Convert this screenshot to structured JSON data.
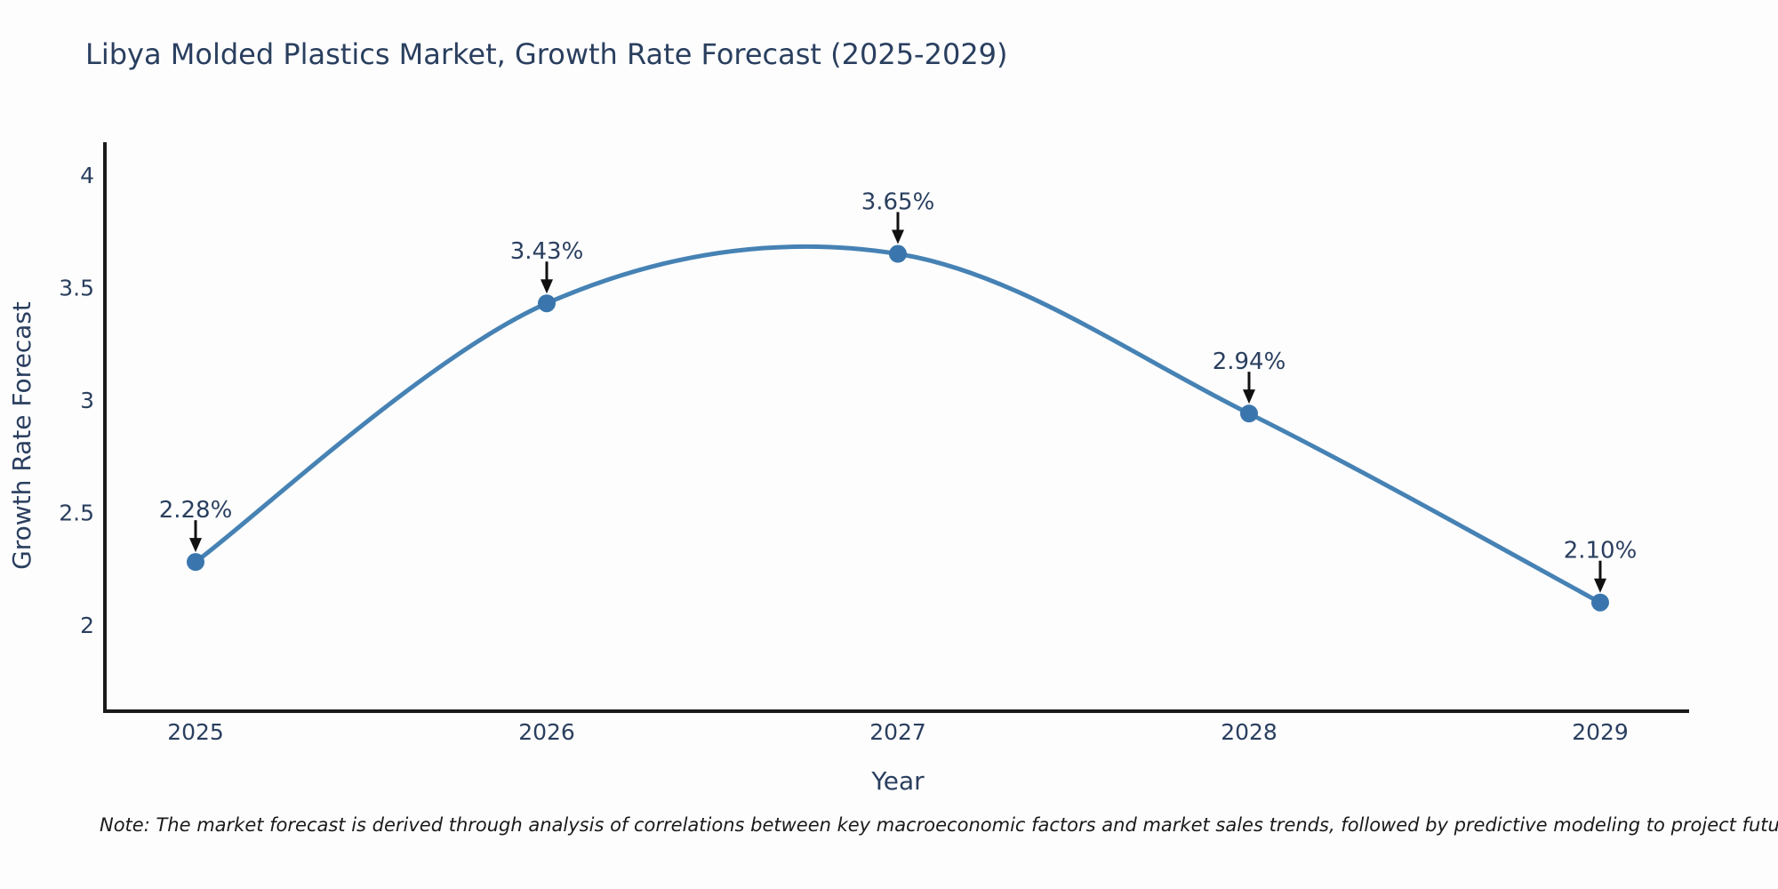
{
  "title": "Libya Molded Plastics Market, Growth Rate Forecast (2025-2029)",
  "note": "Note: The market forecast is derived through analysis of correlations between key macroeconomic factors and market sales trends, followed by predictive modeling to project future sales",
  "chart_data": {
    "type": "line",
    "title": "Libya Molded Plastics Market, Growth Rate Forecast (2025-2029)",
    "x": [
      "2025",
      "2026",
      "2027",
      "2028",
      "2029"
    ],
    "values": [
      2.28,
      3.43,
      3.65,
      2.94,
      2.1
    ],
    "point_labels": [
      "2.28%",
      "3.43%",
      "3.65%",
      "2.94%",
      "2.10%"
    ],
    "xlabel": "Year",
    "ylabel": "Growth Rate Forecast",
    "yticks": [
      4,
      3.5,
      3,
      2.5,
      2
    ],
    "ytick_labels": [
      "4",
      "3.5",
      "3",
      "2.5",
      "2"
    ],
    "ylim": [
      1.62,
      4.15
    ],
    "grid": false,
    "legend": "none",
    "line_shape": "spline",
    "colors": {
      "line": "#4682b4",
      "marker": "#3a76ad",
      "arrow": "#111111",
      "axis": "#1a1a1a",
      "text": "#2a3f5f",
      "note_text": "#1a1a1a"
    }
  }
}
